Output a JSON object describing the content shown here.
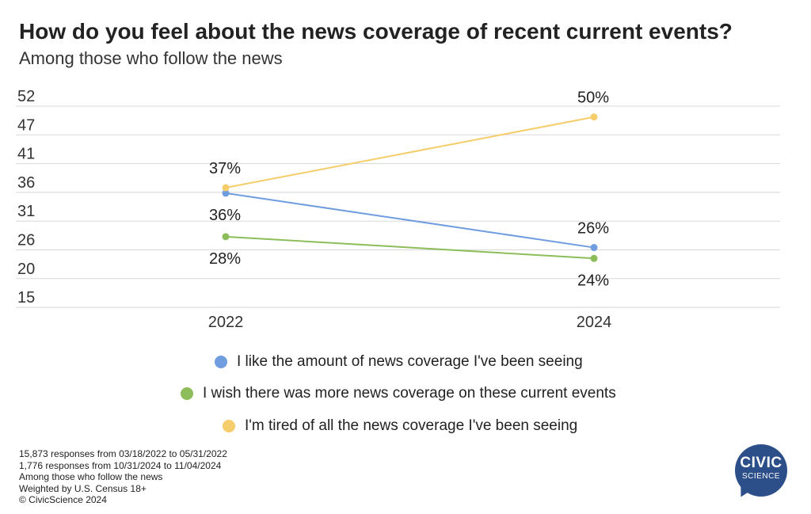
{
  "header": {
    "title": "How do you feel about the news coverage of recent current events?",
    "subtitle": "Among those who follow the news"
  },
  "chart_data": {
    "type": "line",
    "title": "How do you feel about the news coverage of recent current events?",
    "subtitle": "Among those who follow the news",
    "categories": [
      "2022",
      "2024"
    ],
    "y_ticks": [
      "52",
      "47",
      "41",
      "36",
      "31",
      "26",
      "20",
      "15"
    ],
    "ylim": [
      15,
      52
    ],
    "grid": true,
    "legend_position": "bottom",
    "series": [
      {
        "name": "I like the amount of news coverage I've been seeing",
        "values": [
          36,
          26
        ],
        "labels": [
          "36%",
          "26%"
        ],
        "color": "#6f9de0"
      },
      {
        "name": "I wish there was more news coverage on these current events",
        "values": [
          28,
          24
        ],
        "labels": [
          "28%",
          "24%"
        ],
        "color": "#8dbd5a"
      },
      {
        "name": "I'm tired of all the news coverage I've been seeing",
        "values": [
          37,
          50
        ],
        "labels": [
          "37%",
          "50%"
        ],
        "color": "#f5cd6a"
      }
    ]
  },
  "footnotes": [
    "15,873 responses from 03/18/2022 to 05/31/2022",
    "1,776 responses from 10/31/2024 to 11/04/2024",
    "Among those who follow the news",
    "Weighted by U.S. Census 18+",
    "© CivicScience 2024"
  ],
  "logo": {
    "line1": "CIVIC",
    "line2": "SCIENCE",
    "color": "#2c4f8a"
  }
}
